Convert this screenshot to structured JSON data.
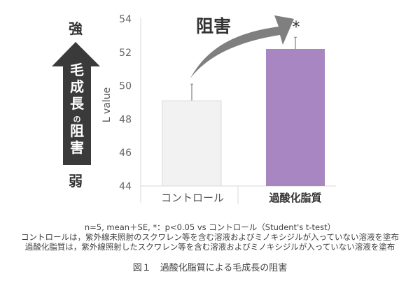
{
  "chart_data": {
    "type": "bar",
    "categories": [
      "コントロール",
      "過酸化脂質"
    ],
    "values": [
      49.1,
      52.2
    ],
    "errors_upper": [
      50.1,
      52.9
    ],
    "colors": [
      "#f2f2f2",
      "#a886c1"
    ],
    "ylabel": "L value",
    "ylim": [
      44,
      54
    ],
    "yticks": [
      "44",
      "46",
      "48",
      "50",
      "52",
      "54"
    ],
    "significance_mark": "*",
    "arrow_label": "阻害"
  },
  "side_scale": {
    "top": "強",
    "bottom": "弱",
    "arrow_text": [
      "毛",
      "成",
      "長",
      "の",
      "阻",
      "害"
    ]
  },
  "notes": [
    "n=5, mean＋SE, *：p<0.05 vs コントロール（Student's t-test）",
    "コントロールは，紫外線未照射のスクワレン等を含む溶液およびミノキシジルが入っていない溶液を塗布",
    "過酸化脂質は，紫外線照射したスクワレン等を含む溶液およびミノキシジルが入っていない溶液を塗布"
  ],
  "figure_title": "図１　過酸化脂質による毛成長の阻害"
}
